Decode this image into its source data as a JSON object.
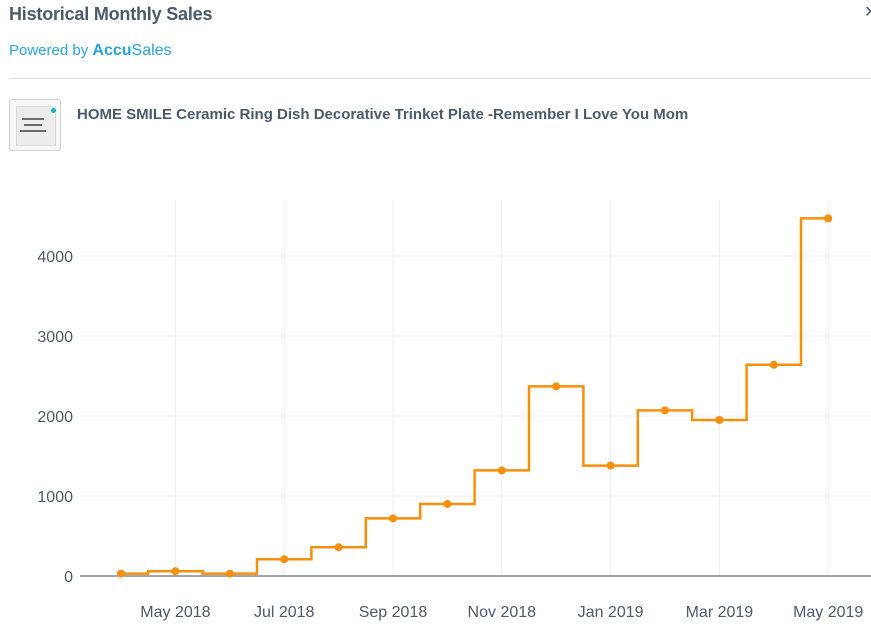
{
  "header": {
    "title": "Historical Monthly Sales",
    "close_glyph": "✕",
    "powered_prefix": "Powered by ",
    "brand_accu": "Accu",
    "brand_sales": "Sales"
  },
  "product": {
    "name": "HOME SMILE Ceramic Ring Dish Decorative Trinket Plate -Remember I Love You Mom",
    "thumbnail_icon": "product-thumbnail"
  },
  "colors": {
    "line": "#f68f0b",
    "grid": "#eeeeee",
    "axis": "#3c4b5a",
    "brand": "#27a4d8"
  },
  "chart_data": {
    "type": "line",
    "line_shape": "step-centered",
    "x": [
      "2018-04",
      "2018-05",
      "2018-06",
      "2018-07",
      "2018-08",
      "2018-09",
      "2018-10",
      "2018-11",
      "2018-12",
      "2019-01",
      "2019-02",
      "2019-03",
      "2019-04",
      "2019-05"
    ],
    "series": [
      {
        "values": [
          30,
          60,
          30,
          210,
          360,
          720,
          900,
          1320,
          2370,
          1380,
          2070,
          1950,
          2640,
          4470
        ]
      }
    ],
    "xticks": [
      "May 2018",
      "Jul 2018",
      "Sep 2018",
      "Nov 2018",
      "Jan 2019",
      "Mar 2019",
      "May 2019"
    ],
    "xtick_values": [
      "2018-05",
      "2018-07",
      "2018-09",
      "2018-11",
      "2019-01",
      "2019-03",
      "2019-05"
    ],
    "yticks": [
      0,
      1000,
      2000,
      3000,
      4000
    ],
    "ylim": [
      0,
      4700
    ],
    "title": "",
    "xlabel": "",
    "ylabel": "",
    "grid": true,
    "markers": true
  }
}
